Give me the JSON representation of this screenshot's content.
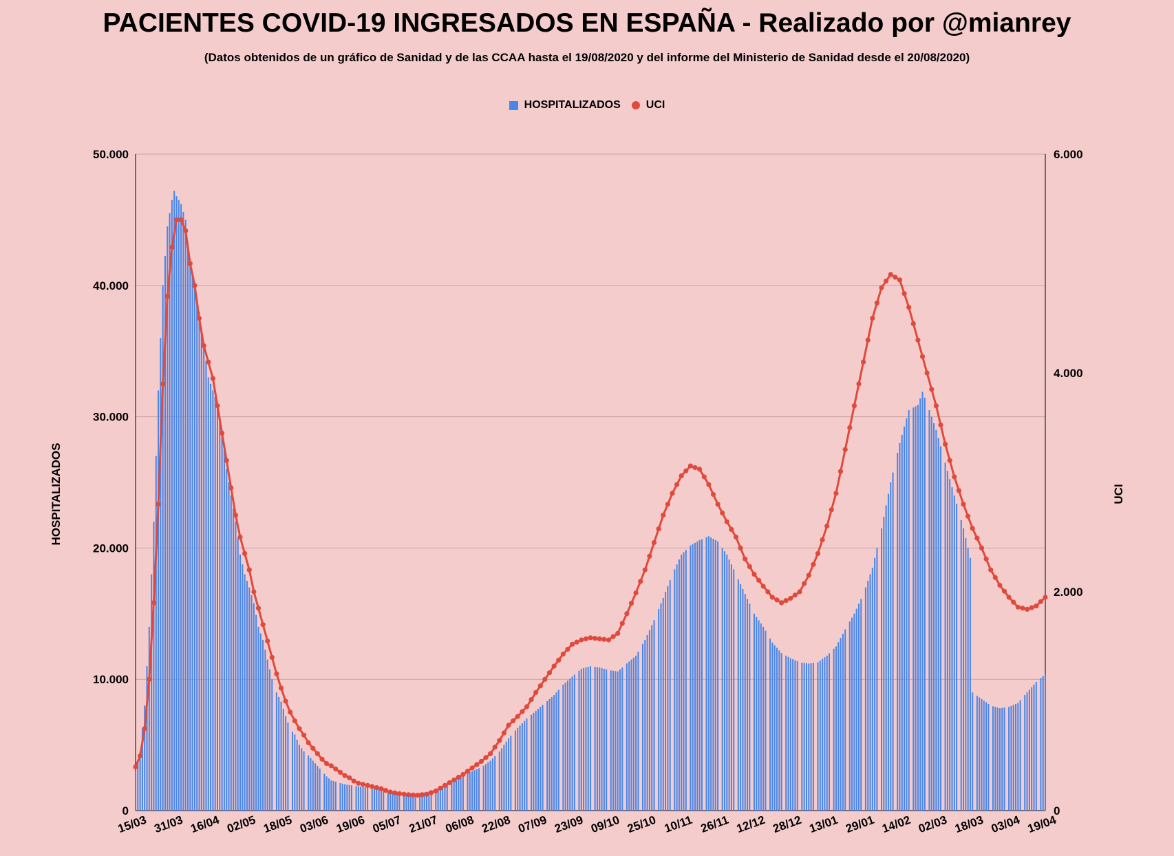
{
  "header": {
    "title": "PACIENTES COVID-19 INGRESADOS EN ESPAÑA - Realizado por @mianrey",
    "subtitle": "(Datos obtenidos de un gráfico de Sanidad y de las CCAA hasta el 19/08/2020 y del informe del Ministerio de Sanidad desde el 20/08/2020)"
  },
  "legend": {
    "hospitalizados": "HOSPITALIZADOS",
    "uci": "UCI"
  },
  "colors": {
    "bars": "#4a86e8",
    "line": "#e04a3c",
    "background": "#f4cccc",
    "grid": "#c9a2a2"
  },
  "chart_data": {
    "type": "bar+line",
    "legend_position": "top",
    "grid": true,
    "x_tick_labels": [
      "15/03",
      "31/03",
      "16/04",
      "02/05",
      "18/05",
      "03/06",
      "19/06",
      "05/07",
      "21/07",
      "06/08",
      "22/08",
      "07/09",
      "23/09",
      "09/10",
      "25/10",
      "10/11",
      "26/11",
      "12/12",
      "28/12",
      "13/01",
      "29/01",
      "14/02",
      "02/03",
      "18/03",
      "03/04",
      "19/04"
    ],
    "x_unit": "days since 15/03/2020",
    "x_range": [
      0,
      400
    ],
    "y_left": {
      "label": "HOSPITALIZADOS",
      "range": [
        0,
        50000
      ],
      "ticks": [
        "0",
        "10.000",
        "20.000",
        "30.000",
        "40.000",
        "50.000"
      ]
    },
    "y_right": {
      "label": "UCI",
      "range": [
        0,
        6000
      ],
      "ticks": [
        "0",
        "2.000",
        "4.000",
        "6.000"
      ]
    },
    "series": [
      {
        "name": "HOSPITALIZADOS",
        "axis": "left",
        "kind": "bar",
        "anchor_points": [
          [
            0,
            3000
          ],
          [
            2,
            4500
          ],
          [
            4,
            8000
          ],
          [
            6,
            14000
          ],
          [
            8,
            22000
          ],
          [
            10,
            32000
          ],
          [
            12,
            40000
          ],
          [
            14,
            44500
          ],
          [
            16,
            46500
          ],
          [
            17,
            47200
          ],
          [
            18,
            46800
          ],
          [
            20,
            46200
          ],
          [
            22,
            45000
          ],
          [
            24,
            41500
          ],
          [
            26,
            40000
          ],
          [
            28,
            38000
          ],
          [
            30,
            35500
          ],
          [
            32,
            33000
          ],
          [
            34,
            32000
          ],
          [
            36,
            31000
          ],
          [
            38,
            29000
          ],
          [
            40,
            26000
          ],
          [
            42,
            24000
          ],
          [
            44,
            22000
          ],
          [
            46,
            19500
          ],
          [
            48,
            18000
          ],
          [
            50,
            17000
          ],
          [
            52,
            15800
          ],
          [
            54,
            14000
          ],
          [
            56,
            13000
          ],
          [
            58,
            11500
          ],
          [
            60,
            10000
          ],
          [
            62,
            9000
          ],
          [
            64,
            8300
          ],
          [
            66,
            7200
          ],
          [
            68,
            6200
          ],
          [
            70,
            5800
          ],
          [
            72,
            5000
          ],
          [
            74,
            4500
          ],
          [
            76,
            4200
          ],
          [
            78,
            3800
          ],
          [
            80,
            3400
          ],
          [
            82,
            3000
          ],
          [
            84,
            2600
          ],
          [
            86,
            2300
          ],
          [
            88,
            2200
          ],
          [
            90,
            2100
          ],
          [
            92,
            2000
          ],
          [
            94,
            1950
          ],
          [
            96,
            1900
          ],
          [
            98,
            1850
          ],
          [
            100,
            1800
          ],
          [
            104,
            1700
          ],
          [
            108,
            1600
          ],
          [
            112,
            1450
          ],
          [
            116,
            1350
          ],
          [
            120,
            1300
          ],
          [
            124,
            1300
          ],
          [
            128,
            1400
          ],
          [
            132,
            1600
          ],
          [
            136,
            1900
          ],
          [
            140,
            2300
          ],
          [
            144,
            2700
          ],
          [
            148,
            3000
          ],
          [
            152,
            3300
          ],
          [
            156,
            3800
          ],
          [
            160,
            4500
          ],
          [
            164,
            5500
          ],
          [
            168,
            6300
          ],
          [
            172,
            7000
          ],
          [
            176,
            7600
          ],
          [
            180,
            8200
          ],
          [
            184,
            8800
          ],
          [
            188,
            9600
          ],
          [
            192,
            10200
          ],
          [
            196,
            10800
          ],
          [
            200,
            11000
          ],
          [
            204,
            10900
          ],
          [
            208,
            10700
          ],
          [
            212,
            10600
          ],
          [
            216,
            11200
          ],
          [
            220,
            11800
          ],
          [
            224,
            13000
          ],
          [
            228,
            14500
          ],
          [
            232,
            16200
          ],
          [
            236,
            18000
          ],
          [
            240,
            19500
          ],
          [
            244,
            20200
          ],
          [
            248,
            20600
          ],
          [
            252,
            20900
          ],
          [
            256,
            20500
          ],
          [
            260,
            19500
          ],
          [
            264,
            18000
          ],
          [
            268,
            16500
          ],
          [
            272,
            15000
          ],
          [
            276,
            14000
          ],
          [
            280,
            12800
          ],
          [
            284,
            12000
          ],
          [
            288,
            11600
          ],
          [
            292,
            11300
          ],
          [
            296,
            11200
          ],
          [
            300,
            11300
          ],
          [
            304,
            11800
          ],
          [
            308,
            12500
          ],
          [
            312,
            13800
          ],
          [
            316,
            15000
          ],
          [
            320,
            16500
          ],
          [
            324,
            18500
          ],
          [
            328,
            21500
          ],
          [
            332,
            25000
          ],
          [
            336,
            28000
          ],
          [
            340,
            30500
          ],
          [
            344,
            30900
          ],
          [
            346,
            31900
          ],
          [
            348,
            31000
          ],
          [
            352,
            29000
          ],
          [
            356,
            26500
          ],
          [
            360,
            24000
          ],
          [
            364,
            21500
          ],
          [
            368,
            18500
          ],
          [
            372,
            16000
          ],
          [
            376,
            14000
          ],
          [
            380,
            12500
          ],
          [
            384,
            11000
          ],
          [
            388,
            10200
          ],
          [
            392,
            9600
          ],
          [
            396,
            9000
          ],
          [
            400,
            8700
          ]
        ],
        "note_tail": [
          [
            368,
            9000
          ],
          [
            372,
            8500
          ],
          [
            376,
            8000
          ],
          [
            380,
            7800
          ],
          [
            384,
            7900
          ],
          [
            388,
            8200
          ],
          [
            392,
            9000
          ],
          [
            396,
            9800
          ],
          [
            400,
            10400
          ]
        ]
      },
      {
        "name": "UCI",
        "axis": "right",
        "kind": "line",
        "points": [
          [
            0,
            400
          ],
          [
            2,
            500
          ],
          [
            4,
            750
          ],
          [
            6,
            1200
          ],
          [
            8,
            1900
          ],
          [
            10,
            2800
          ],
          [
            12,
            3900
          ],
          [
            14,
            4700
          ],
          [
            16,
            5150
          ],
          [
            18,
            5400
          ],
          [
            20,
            5400
          ],
          [
            22,
            5300
          ],
          [
            24,
            5000
          ],
          [
            26,
            4800
          ],
          [
            28,
            4500
          ],
          [
            30,
            4250
          ],
          [
            32,
            4100
          ],
          [
            34,
            3950
          ],
          [
            36,
            3700
          ],
          [
            38,
            3450
          ],
          [
            40,
            3200
          ],
          [
            42,
            2950
          ],
          [
            44,
            2700
          ],
          [
            46,
            2500
          ],
          [
            48,
            2350
          ],
          [
            50,
            2200
          ],
          [
            52,
            2000
          ],
          [
            54,
            1850
          ],
          [
            56,
            1700
          ],
          [
            58,
            1550
          ],
          [
            60,
            1400
          ],
          [
            62,
            1250
          ],
          [
            64,
            1120
          ],
          [
            66,
            1000
          ],
          [
            68,
            900
          ],
          [
            70,
            820
          ],
          [
            72,
            750
          ],
          [
            74,
            690
          ],
          [
            76,
            620
          ],
          [
            78,
            570
          ],
          [
            80,
            520
          ],
          [
            82,
            470
          ],
          [
            84,
            430
          ],
          [
            86,
            410
          ],
          [
            88,
            380
          ],
          [
            90,
            350
          ],
          [
            92,
            320
          ],
          [
            94,
            300
          ],
          [
            96,
            270
          ],
          [
            98,
            250
          ],
          [
            100,
            240
          ],
          [
            104,
            220
          ],
          [
            108,
            200
          ],
          [
            112,
            170
          ],
          [
            116,
            155
          ],
          [
            120,
            145
          ],
          [
            124,
            140
          ],
          [
            128,
            150
          ],
          [
            132,
            180
          ],
          [
            136,
            230
          ],
          [
            140,
            280
          ],
          [
            144,
            330
          ],
          [
            148,
            390
          ],
          [
            152,
            450
          ],
          [
            156,
            520
          ],
          [
            160,
            640
          ],
          [
            164,
            780
          ],
          [
            168,
            860
          ],
          [
            172,
            950
          ],
          [
            176,
            1080
          ],
          [
            180,
            1200
          ],
          [
            184,
            1320
          ],
          [
            188,
            1430
          ],
          [
            192,
            1520
          ],
          [
            196,
            1560
          ],
          [
            200,
            1580
          ],
          [
            204,
            1570
          ],
          [
            208,
            1560
          ],
          [
            212,
            1620
          ],
          [
            216,
            1800
          ],
          [
            220,
            1990
          ],
          [
            224,
            2200
          ],
          [
            228,
            2450
          ],
          [
            232,
            2700
          ],
          [
            236,
            2900
          ],
          [
            240,
            3060
          ],
          [
            244,
            3150
          ],
          [
            248,
            3120
          ],
          [
            252,
            2980
          ],
          [
            256,
            2800
          ],
          [
            260,
            2640
          ],
          [
            264,
            2500
          ],
          [
            268,
            2300
          ],
          [
            272,
            2160
          ],
          [
            276,
            2050
          ],
          [
            280,
            1950
          ],
          [
            284,
            1900
          ],
          [
            288,
            1940
          ],
          [
            292,
            2000
          ],
          [
            296,
            2150
          ],
          [
            300,
            2350
          ],
          [
            304,
            2600
          ],
          [
            308,
            2900
          ],
          [
            312,
            3300
          ],
          [
            316,
            3700
          ],
          [
            320,
            4100
          ],
          [
            324,
            4500
          ],
          [
            328,
            4780
          ],
          [
            332,
            4900
          ],
          [
            336,
            4850
          ],
          [
            340,
            4600
          ],
          [
            344,
            4300
          ],
          [
            348,
            4000
          ],
          [
            352,
            3700
          ],
          [
            356,
            3350
          ],
          [
            360,
            3050
          ],
          [
            364,
            2800
          ],
          [
            368,
            2580
          ],
          [
            372,
            2400
          ],
          [
            376,
            2200
          ],
          [
            380,
            2060
          ],
          [
            384,
            1950
          ],
          [
            388,
            1860
          ],
          [
            392,
            1840
          ],
          [
            396,
            1870
          ],
          [
            400,
            1950
          ]
        ]
      }
    ]
  }
}
